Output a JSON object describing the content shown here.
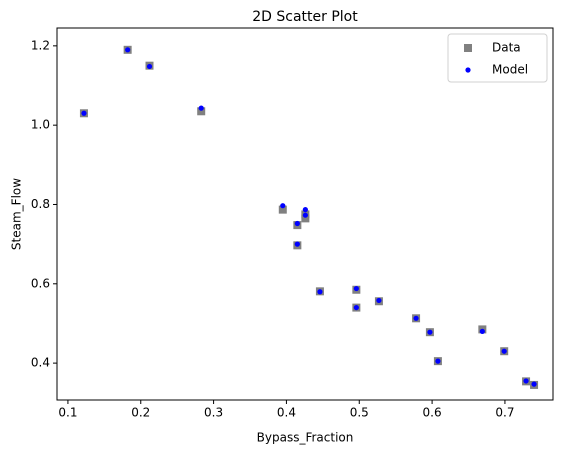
{
  "chart_data": {
    "type": "scatter",
    "title": "2D Scatter Plot",
    "x_label": "Bypass_Fraction",
    "y_label": "Steam_Flow",
    "xlim": [
      0.085,
      0.766
    ],
    "ylim": [
      0.307,
      1.245
    ],
    "xticks": [
      0.1,
      0.2,
      0.3,
      0.4,
      0.5,
      0.6,
      0.7
    ],
    "yticks": [
      0.4,
      0.6,
      0.8,
      {
        "value": 1,
        "label": "1.0"
      },
      1.2
    ],
    "legend": "upper right",
    "series": [
      {
        "name": "Data",
        "color": "#808080",
        "marker": "square",
        "x": [
          0.182,
          0.212,
          0.122,
          0.283,
          0.395,
          0.415,
          0.426,
          0.426,
          0.415,
          0.446,
          0.496,
          0.496,
          0.527,
          0.578,
          0.597,
          0.608,
          0.669,
          0.699,
          0.729,
          0.74
        ],
        "values": [
          1.19,
          1.15,
          1.03,
          1.035,
          0.787,
          0.748,
          0.765,
          0.775,
          0.697,
          0.581,
          0.585,
          0.54,
          0.556,
          0.513,
          0.478,
          0.405,
          0.485,
          0.43,
          0.354,
          0.345
        ]
      },
      {
        "name": "Model",
        "color": "#0000ff",
        "marker": "circle",
        "x": [
          0.182,
          0.212,
          0.122,
          0.283,
          0.395,
          0.415,
          0.426,
          0.426,
          0.415,
          0.446,
          0.496,
          0.496,
          0.527,
          0.578,
          0.597,
          0.608,
          0.669,
          0.699,
          0.729,
          0.74
        ],
        "values": [
          1.19,
          1.148,
          1.03,
          1.043,
          0.797,
          0.752,
          0.787,
          0.773,
          0.7,
          0.58,
          0.588,
          0.54,
          0.558,
          0.513,
          0.478,
          0.405,
          0.48,
          0.43,
          0.355,
          0.347
        ]
      }
    ]
  }
}
